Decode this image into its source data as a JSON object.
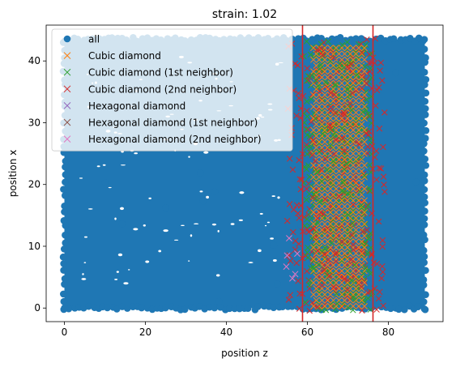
{
  "chart_data": {
    "type": "scatter",
    "title": "strain: 1.02",
    "xlabel": "position z",
    "ylabel": "position x",
    "xlim": [
      -4.5,
      93.5
    ],
    "ylim": [
      -2.2,
      45.8
    ],
    "xticks": [
      0,
      20,
      40,
      60,
      80
    ],
    "yticks": [
      0,
      10,
      20,
      30,
      40
    ],
    "grid": false,
    "legend_position": "top-left",
    "vertical_lines": {
      "x": [
        58.8,
        76.2
      ],
      "color": "#d62728"
    },
    "series": [
      {
        "name": "all",
        "marker": "circle",
        "color": "#1f77b4",
        "region": {
          "x": [
            0,
            89
          ],
          "y": [
            0,
            43.5
          ]
        }
      },
      {
        "name": "Cubic diamond",
        "marker": "x",
        "color": "#ff7f0e",
        "region": {
          "x": [
            61.5,
            74.5
          ],
          "y": [
            0,
            43
          ]
        }
      },
      {
        "name": "Cubic diamond (1st neighbor)",
        "marker": "x",
        "color": "#2ca02c",
        "region": {
          "x": [
            59.5,
            76
          ],
          "y": [
            0,
            43
          ]
        }
      },
      {
        "name": "Cubic diamond (2nd neighbor)",
        "marker": "x",
        "color": "#d62728",
        "region": {
          "x": [
            55.5,
            79.5
          ],
          "y": [
            0,
            43.5
          ]
        }
      },
      {
        "name": "Hexagonal diamond",
        "marker": "x",
        "color": "#9467bd",
        "points": []
      },
      {
        "name": "Hexagonal diamond (1st neighbor)",
        "marker": "x",
        "color": "#8c564b",
        "points": []
      },
      {
        "name": "Hexagonal diamond (2nd neighbor)",
        "marker": "x",
        "color": "#e377c2",
        "points": [
          [
            55.5,
            11.3
          ],
          [
            55.0,
            8.5
          ],
          [
            54.8,
            6.7
          ],
          [
            57.0,
            5.5
          ],
          [
            56.3,
            4.8
          ],
          [
            57.5,
            8.8
          ]
        ]
      }
    ]
  }
}
